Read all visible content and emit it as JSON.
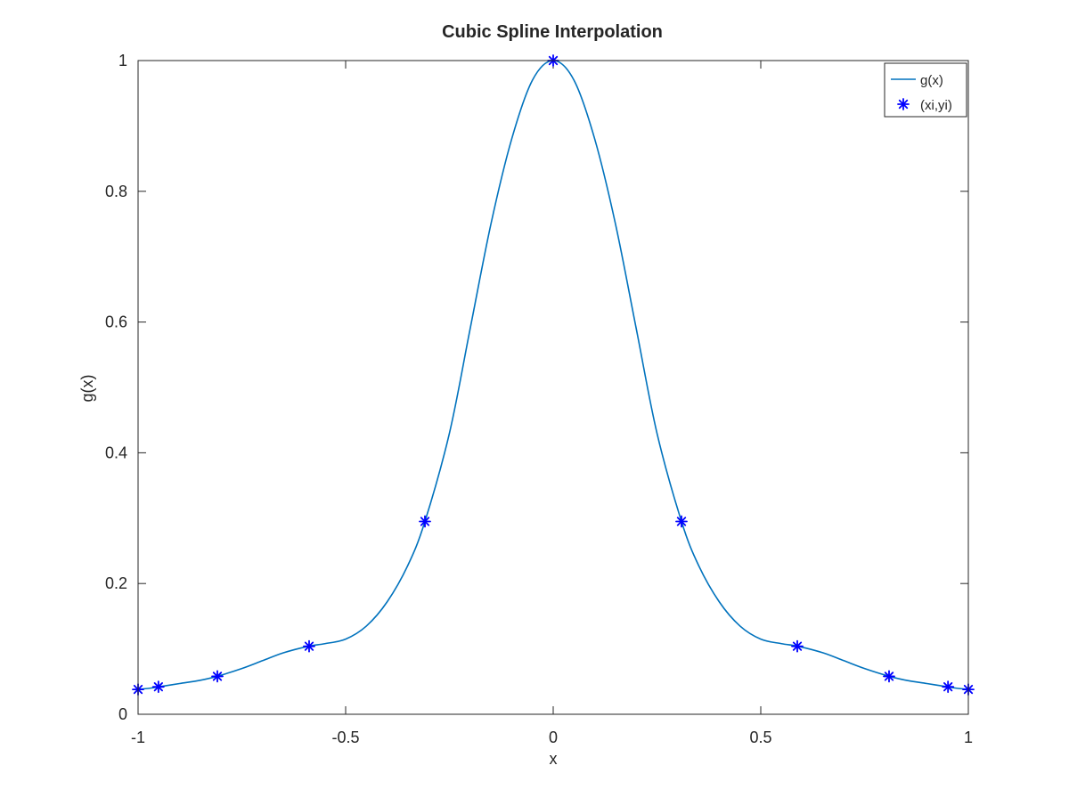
{
  "chart_data": {
    "type": "line",
    "title": "Cubic Spline Interpolation",
    "xlabel": "x",
    "ylabel": "g(x)",
    "xlim": [
      -1,
      1
    ],
    "ylim": [
      0,
      1
    ],
    "xticks": [
      -1,
      -0.5,
      0,
      0.5,
      1
    ],
    "xtick_labels": [
      "-1",
      "-0.5",
      "0",
      "0.5",
      "1"
    ],
    "yticks": [
      0,
      0.2,
      0.4,
      0.6,
      0.8,
      1
    ],
    "ytick_labels": [
      "0",
      "0.2",
      "0.4",
      "0.6",
      "0.8",
      "1"
    ],
    "grid": false,
    "legend_position": "top-right",
    "series": [
      {
        "name": "g(x)",
        "style": "line",
        "color": "#0072BD",
        "x": [
          -1,
          -0.97,
          -0.95,
          -0.9,
          -0.85,
          -0.81,
          -0.75,
          -0.7,
          -0.65,
          -0.59,
          -0.55,
          -0.5,
          -0.45,
          -0.4,
          -0.35,
          -0.309,
          -0.25,
          -0.2,
          -0.15,
          -0.1,
          -0.05,
          0,
          0.05,
          0.1,
          0.15,
          0.2,
          0.25,
          0.309,
          0.35,
          0.4,
          0.45,
          0.5,
          0.55,
          0.59,
          0.65,
          0.7,
          0.75,
          0.81,
          0.85,
          0.9,
          0.95,
          0.97,
          1
        ],
        "y": [
          0.038,
          0.04,
          0.042,
          0.047,
          0.052,
          0.058,
          0.07,
          0.082,
          0.094,
          0.104,
          0.108,
          0.115,
          0.135,
          0.172,
          0.228,
          0.295,
          0.43,
          0.59,
          0.75,
          0.88,
          0.97,
          1.0,
          0.97,
          0.88,
          0.75,
          0.59,
          0.43,
          0.295,
          0.228,
          0.172,
          0.135,
          0.115,
          0.108,
          0.104,
          0.094,
          0.082,
          0.07,
          0.058,
          0.052,
          0.047,
          0.042,
          0.04,
          0.038
        ]
      },
      {
        "name": "(xi,yi)",
        "style": "marker",
        "marker": "*",
        "color": "#0000FF",
        "x": [
          -1,
          -0.951,
          -0.809,
          -0.588,
          -0.309,
          0,
          0.309,
          0.588,
          0.809,
          0.951,
          1
        ],
        "y": [
          0.038,
          0.042,
          0.058,
          0.104,
          0.295,
          1.0,
          0.295,
          0.104,
          0.058,
          0.042,
          0.038
        ]
      }
    ]
  }
}
